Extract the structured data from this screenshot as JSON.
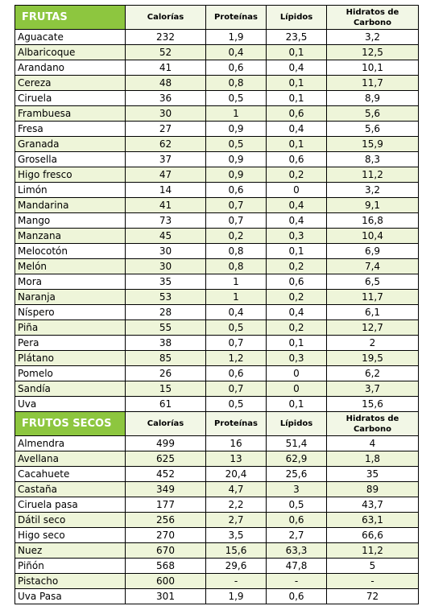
{
  "sections": [
    {
      "header": [
        "FRUTAS",
        "Calorías",
        "Proteínas",
        "Lípidos",
        "Hidratos de Carbono"
      ],
      "rows": [
        [
          "Aguacate",
          "232",
          "1,9",
          "23,5",
          "3,2"
        ],
        [
          "Albaricoque",
          "52",
          "0,4",
          "0,1",
          "12,5"
        ],
        [
          "Arandano",
          "41",
          "0,6",
          "0,4",
          "10,1"
        ],
        [
          "Cereza",
          "48",
          "0,8",
          "0,1",
          "11,7"
        ],
        [
          "Ciruela",
          "36",
          "0,5",
          "0,1",
          "8,9"
        ],
        [
          "Frambuesa",
          "30",
          "1",
          "0,6",
          "5,6"
        ],
        [
          "Fresa",
          "27",
          "0,9",
          "0,4",
          "5,6"
        ],
        [
          "Granada",
          "62",
          "0,5",
          "0,1",
          "15,9"
        ],
        [
          "Grosella",
          "37",
          "0,9",
          "0,6",
          "8,3"
        ],
        [
          "Higo fresco",
          "47",
          "0,9",
          "0,2",
          "11,2"
        ],
        [
          "Limón",
          "14",
          "0,6",
          "0",
          "3,2"
        ],
        [
          "Mandarina",
          "41",
          "0,7",
          "0,4",
          "9,1"
        ],
        [
          "Mango",
          "73",
          "0,7",
          "0,4",
          "16,8"
        ],
        [
          "Manzana",
          "45",
          "0,2",
          "0,3",
          "10,4"
        ],
        [
          "Melocotón",
          "30",
          "0,8",
          "0,1",
          "6,9"
        ],
        [
          "Melón",
          "30",
          "0,8",
          "0,2",
          "7,4"
        ],
        [
          "Mora",
          "35",
          "1",
          "0,6",
          "6,5"
        ],
        [
          "Naranja",
          "53",
          "1",
          "0,2",
          "11,7"
        ],
        [
          "Níspero",
          "28",
          "0,4",
          "0,4",
          "6,1"
        ],
        [
          "Piña",
          "55",
          "0,5",
          "0,2",
          "12,7"
        ],
        [
          "Pera",
          "38",
          "0,7",
          "0,1",
          "2"
        ],
        [
          "Plátano",
          "85",
          "1,2",
          "0,3",
          "19,5"
        ],
        [
          "Pomelo",
          "26",
          "0,6",
          "0",
          "6,2"
        ],
        [
          "Sandía",
          "15",
          "0,7",
          "0",
          "3,7"
        ],
        [
          "Uva",
          "61",
          "0,5",
          "0,1",
          "15,6"
        ]
      ]
    },
    {
      "header": [
        "FRUTOS SECOS",
        "Calorías",
        "Proteínas",
        "Lípidos",
        "Hidratos de Carbono"
      ],
      "rows": [
        [
          "Almendra",
          "499",
          "16",
          "51,4",
          "4"
        ],
        [
          "Avellana",
          "625",
          "13",
          "62,9",
          "1,8"
        ],
        [
          "Cacahuete",
          "452",
          "20,4",
          "25,6",
          "35"
        ],
        [
          "Castaña",
          "349",
          "4,7",
          "3",
          "89"
        ],
        [
          "Ciruela pasa",
          "177",
          "2,2",
          "0,5",
          "43,7"
        ],
        [
          "Dátil seco",
          "256",
          "2,7",
          "0,6",
          "63,1"
        ],
        [
          "Higo seco",
          "270",
          "3,5",
          "2,7",
          "66,6"
        ],
        [
          "Nuez",
          "670",
          "15,6",
          "63,3",
          "11,2"
        ],
        [
          "Piñón",
          "568",
          "29,6",
          "47,8",
          "5"
        ],
        [
          "Pistacho",
          "600",
          "-",
          "-",
          "-"
        ],
        [
          "Uva Pasa",
          "301",
          "1,9",
          "0,6",
          "72"
        ]
      ]
    }
  ]
}
